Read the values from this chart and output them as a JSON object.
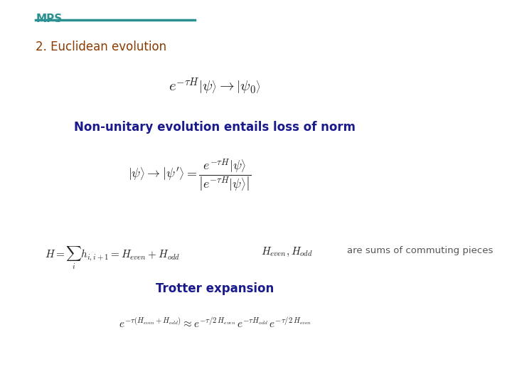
{
  "bg_color": "#ffffff",
  "title_text": "MPS",
  "title_color": "#2a9090",
  "title_underline_color": "#2a9090",
  "section_color": "#8B3A00",
  "text_blue": "#1a1a8c",
  "text_black": "#222222",
  "text_gray": "#555555",
  "eq1": "$e^{-\\tau H}\\left|\\psi\\right\\rangle \\rightarrow \\left|\\psi_0\\right\\rangle$",
  "label_nonunitary": "Non-unitary evolution entails loss of norm",
  "eq2": "$\\left|\\psi\\right\\rangle \\rightarrow \\left|\\psi'\\right\\rangle = \\dfrac{e^{-\\tau H}\\left|\\psi\\right\\rangle}{\\left|e^{-\\tau H}\\left|\\psi\\right\\rangle\\right|}$",
  "eq3a": "$H = \\sum_i h_{i,i+1} = H_{even} + H_{odd}$",
  "eq3b": "$H_{even}, H_{odd}$",
  "label_commuting": "are sums of commuting pieces",
  "label_trotter": "Trotter expansion",
  "eq4": "$e^{-\\tau(H_{even}+H_{odd})} \\approx e^{-\\tau/2\\, H_{even}}\\, e^{-\\tau H_{odd}}\\, e^{-\\tau/2\\, H_{even}}$",
  "section_title": "2. Euclidean evolution"
}
